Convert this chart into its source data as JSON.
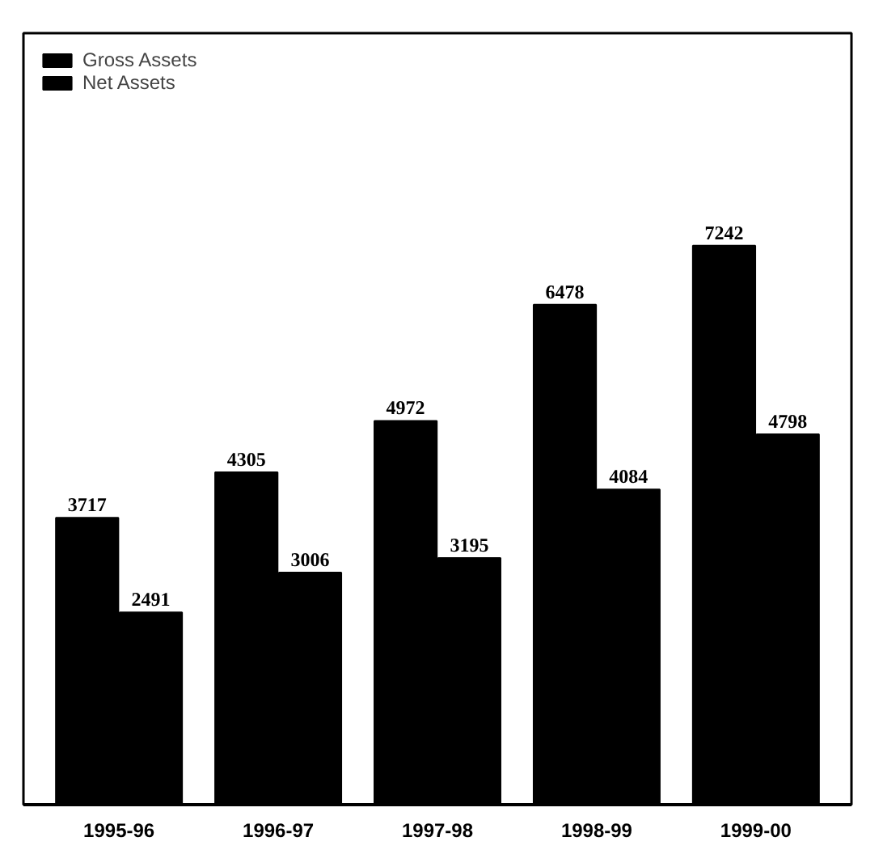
{
  "chart_data": {
    "type": "bar",
    "categories": [
      "1995-96",
      "1996-97",
      "1997-98",
      "1998-99",
      "1999-00"
    ],
    "series": [
      {
        "name": "Gross Assets",
        "color": "#000000",
        "values": [
          3717,
          4305,
          4972,
          6478,
          7242
        ]
      },
      {
        "name": "Net Assets",
        "color": "#000000",
        "values": [
          2491,
          3006,
          3195,
          4084,
          4798
        ]
      }
    ],
    "data_labels": true,
    "legend": "top left",
    "grid": false,
    "tick_labels": "x"
  }
}
